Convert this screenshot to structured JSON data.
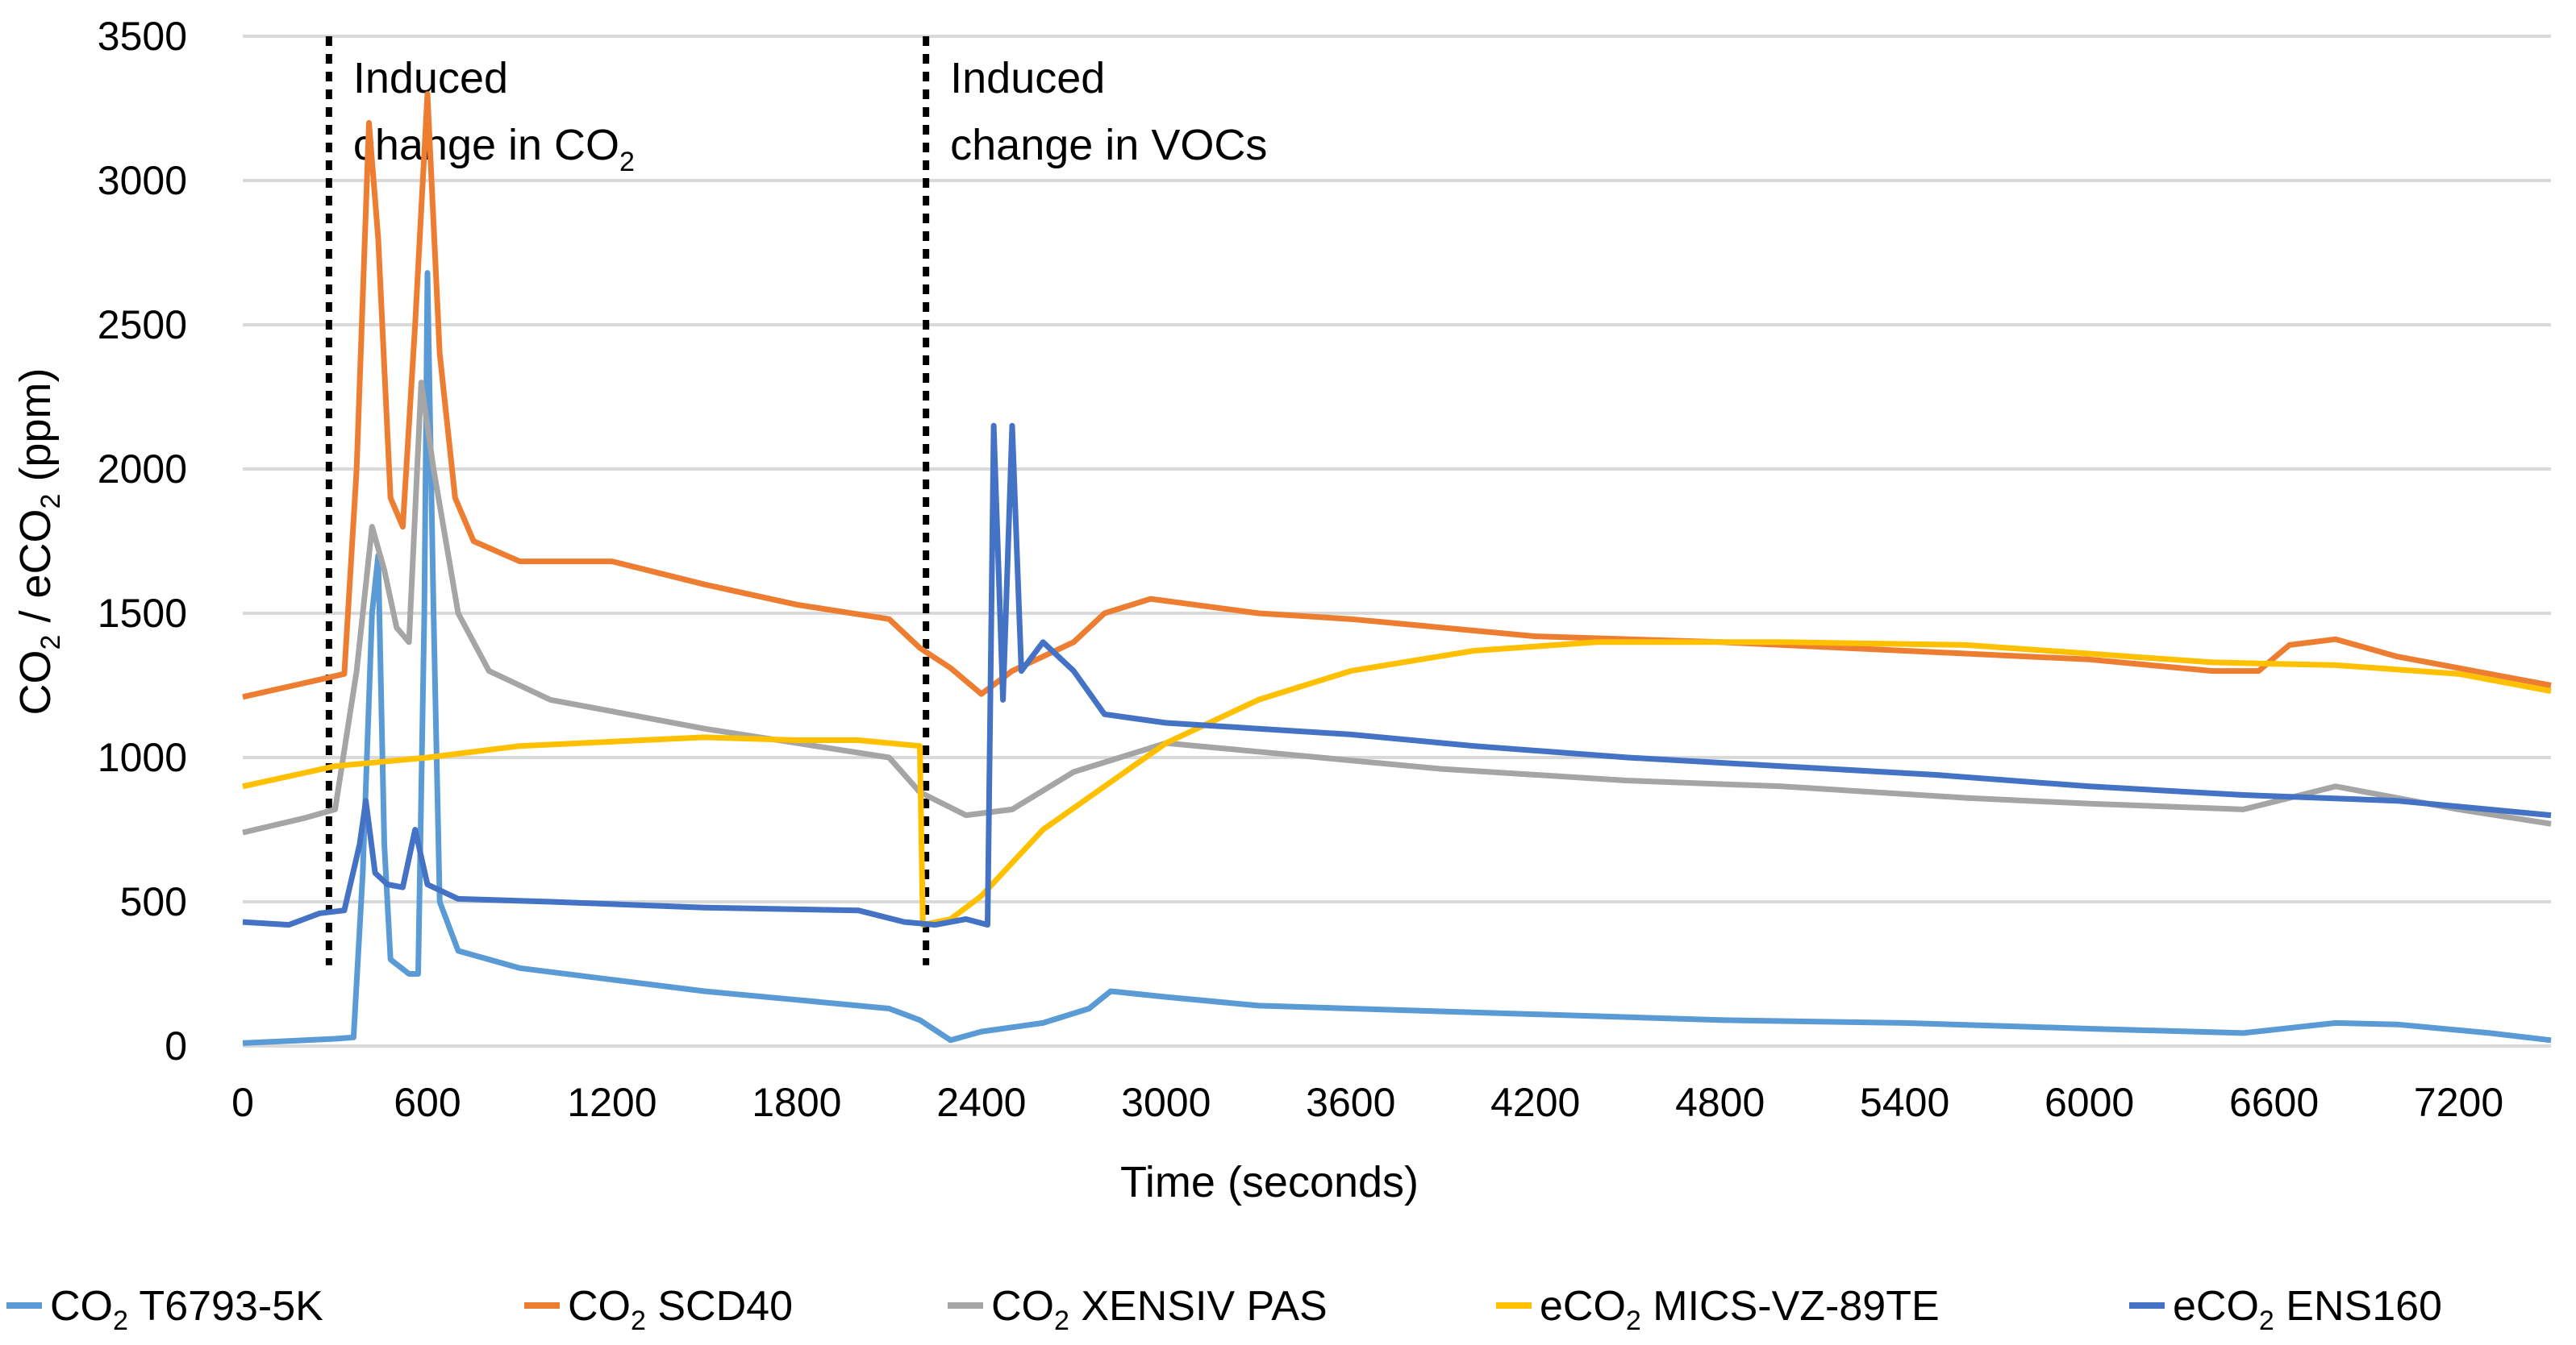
{
  "chart_data": {
    "type": "line",
    "title": "",
    "xlabel": "Time (seconds)",
    "ylabel": {
      "p1": "CO",
      "s1": "2",
      "p2": " / eCO",
      "s2": "2",
      "p3": " (ppm)"
    },
    "xlim": [
      0,
      7500
    ],
    "ylim": [
      0,
      3500
    ],
    "grid": "horizontal",
    "legend_position": "bottom",
    "x_ticks": [
      "0",
      "600",
      "1200",
      "1800",
      "2400",
      "3000",
      "3600",
      "4200",
      "4800",
      "5400",
      "6000",
      "6600",
      "7200"
    ],
    "y_ticks": [
      "0",
      "500",
      "1000",
      "1500",
      "2000",
      "2500",
      "3000",
      "3500"
    ],
    "annotations": [
      {
        "line1": "Induced",
        "line2": "change in CO",
        "sub": "2",
        "x": 280,
        "ymin": 280,
        "ymax": 3500
      },
      {
        "line1": "Induced",
        "line2": "change in VOCs",
        "sub": "",
        "x": 2220,
        "ymin": 280,
        "ymax": 3500
      }
    ],
    "series": [
      {
        "name": "CO2 T6793-5K",
        "label": {
          "pre": "CO",
          "sub": "2",
          "post": " T6793-5K"
        },
        "color": "#5B9BD5",
        "points": [
          [
            0,
            10
          ],
          [
            300,
            25
          ],
          [
            360,
            30
          ],
          [
            390,
            600
          ],
          [
            420,
            1500
          ],
          [
            440,
            1700
          ],
          [
            460,
            700
          ],
          [
            480,
            300
          ],
          [
            540,
            250
          ],
          [
            570,
            250
          ],
          [
            590,
            1500
          ],
          [
            600,
            2680
          ],
          [
            620,
            1500
          ],
          [
            640,
            500
          ],
          [
            700,
            330
          ],
          [
            900,
            270
          ],
          [
            1200,
            230
          ],
          [
            1500,
            190
          ],
          [
            1800,
            160
          ],
          [
            2100,
            130
          ],
          [
            2200,
            90
          ],
          [
            2300,
            20
          ],
          [
            2400,
            50
          ],
          [
            2600,
            80
          ],
          [
            2750,
            130
          ],
          [
            2820,
            190
          ],
          [
            3000,
            170
          ],
          [
            3300,
            140
          ],
          [
            3600,
            130
          ],
          [
            4200,
            110
          ],
          [
            4800,
            90
          ],
          [
            5400,
            80
          ],
          [
            6000,
            60
          ],
          [
            6500,
            45
          ],
          [
            6800,
            80
          ],
          [
            7000,
            75
          ],
          [
            7300,
            45
          ],
          [
            7500,
            20
          ]
        ]
      },
      {
        "name": "CO2 SCD40",
        "label": {
          "pre": "CO",
          "sub": "2",
          "post": " SCD40"
        },
        "color": "#ED7D31",
        "points": [
          [
            0,
            1210
          ],
          [
            250,
            1270
          ],
          [
            330,
            1290
          ],
          [
            370,
            2000
          ],
          [
            410,
            3200
          ],
          [
            440,
            2800
          ],
          [
            480,
            1900
          ],
          [
            520,
            1800
          ],
          [
            560,
            2500
          ],
          [
            600,
            3300
          ],
          [
            640,
            2400
          ],
          [
            690,
            1900
          ],
          [
            750,
            1750
          ],
          [
            900,
            1680
          ],
          [
            1200,
            1680
          ],
          [
            1500,
            1600
          ],
          [
            1800,
            1530
          ],
          [
            2100,
            1480
          ],
          [
            2200,
            1380
          ],
          [
            2300,
            1310
          ],
          [
            2400,
            1220
          ],
          [
            2500,
            1300
          ],
          [
            2700,
            1400
          ],
          [
            2800,
            1500
          ],
          [
            2950,
            1550
          ],
          [
            3300,
            1500
          ],
          [
            3600,
            1480
          ],
          [
            4200,
            1420
          ],
          [
            4800,
            1400
          ],
          [
            5400,
            1370
          ],
          [
            6000,
            1340
          ],
          [
            6400,
            1300
          ],
          [
            6550,
            1300
          ],
          [
            6650,
            1390
          ],
          [
            6800,
            1410
          ],
          [
            7000,
            1350
          ],
          [
            7300,
            1290
          ],
          [
            7500,
            1250
          ]
        ]
      },
      {
        "name": "CO2 XENSIV PAS",
        "label": {
          "pre": "CO",
          "sub": "2",
          "post": " XENSIV PAS"
        },
        "color": "#A5A5A5",
        "points": [
          [
            0,
            740
          ],
          [
            200,
            790
          ],
          [
            300,
            820
          ],
          [
            370,
            1300
          ],
          [
            420,
            1800
          ],
          [
            460,
            1650
          ],
          [
            500,
            1450
          ],
          [
            540,
            1400
          ],
          [
            580,
            2300
          ],
          [
            620,
            2000
          ],
          [
            700,
            1500
          ],
          [
            800,
            1300
          ],
          [
            1000,
            1200
          ],
          [
            1500,
            1100
          ],
          [
            1800,
            1050
          ],
          [
            2100,
            1000
          ],
          [
            2200,
            880
          ],
          [
            2350,
            800
          ],
          [
            2500,
            820
          ],
          [
            2700,
            950
          ],
          [
            3000,
            1050
          ],
          [
            3300,
            1020
          ],
          [
            3600,
            990
          ],
          [
            3900,
            960
          ],
          [
            4500,
            920
          ],
          [
            5000,
            900
          ],
          [
            5600,
            860
          ],
          [
            6000,
            840
          ],
          [
            6500,
            820
          ],
          [
            6800,
            900
          ],
          [
            7200,
            820
          ],
          [
            7500,
            770
          ]
        ]
      },
      {
        "name": "eCO2 MICS-VZ-89TE",
        "label": {
          "pre": "eCO",
          "sub": "2",
          "post": " MICS-VZ-89TE"
        },
        "color": "#FFC000",
        "points": [
          [
            0,
            900
          ],
          [
            300,
            970
          ],
          [
            600,
            1000
          ],
          [
            900,
            1040
          ],
          [
            1500,
            1070
          ],
          [
            1800,
            1060
          ],
          [
            2000,
            1060
          ],
          [
            2200,
            1040
          ],
          [
            2210,
            420
          ],
          [
            2300,
            440
          ],
          [
            2400,
            520
          ],
          [
            2600,
            750
          ],
          [
            2800,
            900
          ],
          [
            3000,
            1050
          ],
          [
            3300,
            1200
          ],
          [
            3600,
            1300
          ],
          [
            4000,
            1370
          ],
          [
            4400,
            1400
          ],
          [
            5000,
            1400
          ],
          [
            5600,
            1390
          ],
          [
            6000,
            1360
          ],
          [
            6400,
            1330
          ],
          [
            6800,
            1320
          ],
          [
            7200,
            1290
          ],
          [
            7500,
            1230
          ]
        ]
      },
      {
        "name": "eCO2 ENS160",
        "label": {
          "pre": "eCO",
          "sub": "2",
          "post": " ENS160"
        },
        "color": "#4472C4",
        "points": [
          [
            0,
            430
          ],
          [
            150,
            420
          ],
          [
            250,
            460
          ],
          [
            330,
            470
          ],
          [
            380,
            700
          ],
          [
            400,
            850
          ],
          [
            430,
            600
          ],
          [
            470,
            560
          ],
          [
            520,
            550
          ],
          [
            560,
            750
          ],
          [
            600,
            560
          ],
          [
            700,
            510
          ],
          [
            1000,
            500
          ],
          [
            1500,
            480
          ],
          [
            2000,
            470
          ],
          [
            2150,
            430
          ],
          [
            2250,
            420
          ],
          [
            2350,
            440
          ],
          [
            2420,
            420
          ],
          [
            2440,
            2150
          ],
          [
            2470,
            1200
          ],
          [
            2500,
            2150
          ],
          [
            2530,
            1300
          ],
          [
            2600,
            1400
          ],
          [
            2700,
            1300
          ],
          [
            2800,
            1150
          ],
          [
            3000,
            1120
          ],
          [
            3300,
            1100
          ],
          [
            3600,
            1080
          ],
          [
            4000,
            1040
          ],
          [
            4500,
            1000
          ],
          [
            5000,
            970
          ],
          [
            5500,
            940
          ],
          [
            6000,
            900
          ],
          [
            6500,
            870
          ],
          [
            7000,
            850
          ],
          [
            7500,
            800
          ]
        ]
      }
    ]
  }
}
